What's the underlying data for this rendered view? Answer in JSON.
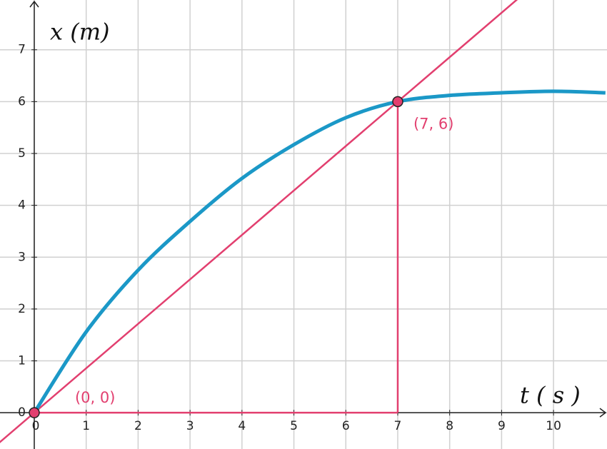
{
  "chart_data": {
    "type": "line",
    "xlabel": "t ( s )",
    "ylabel": "x (m)",
    "x": [
      0,
      1,
      2,
      3,
      4,
      5,
      6,
      7,
      8,
      9,
      10,
      11
    ],
    "series": [
      {
        "color": "#1b98c7",
        "values": [
          0,
          1.56,
          2.75,
          3.69,
          4.52,
          5.17,
          5.69,
          6,
          6.12,
          6.17,
          6.2,
          6.17
        ]
      }
    ],
    "annotations": [
      {
        "text": "(0, 0)",
        "x": 0,
        "y": 0
      },
      {
        "text": "(7, 6)",
        "x": 7,
        "y": 6
      }
    ],
    "accent_color": "#e23f6f",
    "xlim": [
      -0.66,
      11.03
    ],
    "ylim": [
      -0.7,
      7.96
    ],
    "xticks": [
      0,
      1,
      2,
      3,
      4,
      5,
      6,
      7,
      8,
      9,
      10
    ],
    "yticks": [
      0,
      1,
      2,
      3,
      4,
      5,
      6,
      7
    ],
    "grid": true
  }
}
